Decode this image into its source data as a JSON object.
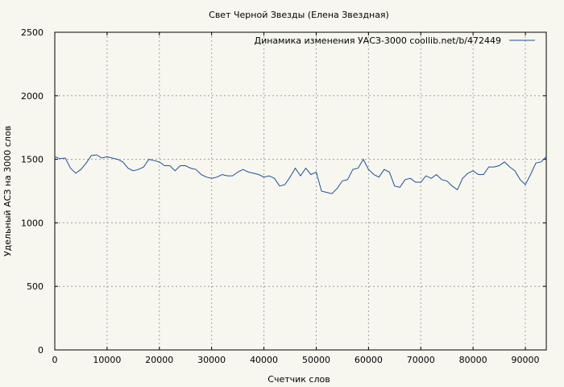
{
  "chart_data": {
    "type": "line",
    "title": "Свет Черной Звезды (Елена Звездная)",
    "xlabel": "Счетчик слов",
    "ylabel": "Удельный АСЗ на 3000 слов",
    "xlim": [
      0,
      94000
    ],
    "ylim": [
      0,
      2500
    ],
    "xticks": [
      0,
      10000,
      20000,
      30000,
      40000,
      50000,
      60000,
      70000,
      80000,
      90000
    ],
    "yticks": [
      0,
      500,
      1000,
      1500,
      2000,
      2500
    ],
    "xtick_labels": [
      "0",
      "10000",
      "20000",
      "30000",
      "40000",
      "50000",
      "60000",
      "70000",
      "80000",
      "90000"
    ],
    "ytick_labels": [
      "0",
      "500",
      "1000",
      "1500",
      "2000",
      "2500"
    ],
    "grid": true,
    "legend_position": "top-right",
    "colors": {
      "line": "#1f4e9a",
      "background": "#f7f7f0",
      "grid": "#a0a0a0"
    },
    "series": [
      {
        "name": "Динамика изменения УАСЗ-3000  coollib.net/b/472449",
        "x": [
          0,
          1000,
          2000,
          3000,
          4000,
          5000,
          6000,
          7000,
          8000,
          9000,
          10000,
          11000,
          12000,
          13000,
          14000,
          15000,
          16000,
          17000,
          18000,
          19000,
          20000,
          21000,
          22000,
          23000,
          24000,
          25000,
          26000,
          27000,
          28000,
          29000,
          30000,
          31000,
          32000,
          33000,
          34000,
          35000,
          36000,
          37000,
          38000,
          39000,
          40000,
          41000,
          42000,
          43000,
          44000,
          45000,
          46000,
          47000,
          48000,
          49000,
          50000,
          51000,
          52000,
          53000,
          54000,
          55000,
          56000,
          57000,
          58000,
          59000,
          60000,
          61000,
          62000,
          63000,
          64000,
          65000,
          66000,
          67000,
          68000,
          69000,
          70000,
          71000,
          72000,
          73000,
          74000,
          75000,
          76000,
          77000,
          78000,
          79000,
          80000,
          81000,
          82000,
          83000,
          84000,
          85000,
          86000,
          87000,
          88000,
          89000,
          90000,
          91000,
          92000,
          93000,
          94000
        ],
        "y": [
          1520,
          1505,
          1510,
          1430,
          1390,
          1420,
          1470,
          1530,
          1535,
          1510,
          1520,
          1510,
          1500,
          1480,
          1430,
          1410,
          1420,
          1440,
          1500,
          1490,
          1480,
          1450,
          1450,
          1410,
          1450,
          1450,
          1430,
          1420,
          1380,
          1360,
          1350,
          1360,
          1380,
          1370,
          1370,
          1400,
          1420,
          1400,
          1390,
          1380,
          1360,
          1370,
          1350,
          1290,
          1300,
          1360,
          1430,
          1370,
          1430,
          1380,
          1400,
          1250,
          1240,
          1230,
          1270,
          1330,
          1340,
          1420,
          1430,
          1500,
          1420,
          1380,
          1360,
          1420,
          1400,
          1290,
          1280,
          1340,
          1350,
          1320,
          1320,
          1370,
          1350,
          1380,
          1340,
          1330,
          1290,
          1260,
          1350,
          1390,
          1410,
          1380,
          1380,
          1440,
          1440,
          1450,
          1480,
          1440,
          1410,
          1340,
          1300,
          1380,
          1470,
          1480,
          1520
        ]
      }
    ]
  }
}
